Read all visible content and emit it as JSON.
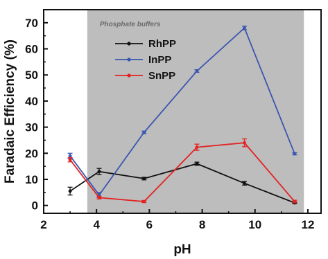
{
  "chart_data": {
    "type": "line",
    "xlabel": "pH",
    "ylabel": "Faradaic Efficiency (%)",
    "xlim": [
      2,
      12.5
    ],
    "ylim": [
      -3,
      75
    ],
    "x_ticks": [
      2,
      4,
      6,
      8,
      10,
      12
    ],
    "y_ticks": [
      0,
      10,
      20,
      30,
      40,
      50,
      60,
      70
    ],
    "grid": false,
    "legend_position": "top-left inside shaded region",
    "shaded_region": {
      "x_start": 3.65,
      "x_end": 11.85,
      "color": "#bdbdbd",
      "label": "Phosphate buffers"
    },
    "series": [
      {
        "name": "RhPP",
        "color": "#111111",
        "x": [
          3.0,
          4.1,
          5.8,
          7.8,
          9.6,
          11.5
        ],
        "y": [
          5.5,
          13.0,
          10.3,
          16.0,
          8.5,
          1.0
        ],
        "err": [
          1.5,
          1.2,
          0.5,
          0.6,
          0.7,
          0.3
        ]
      },
      {
        "name": "InPP",
        "color": "#3a55b0",
        "x": [
          3.0,
          4.1,
          5.8,
          7.8,
          9.6,
          11.5
        ],
        "y": [
          19.0,
          4.0,
          28.0,
          51.5,
          68.0,
          19.8
        ],
        "err": [
          1.0,
          1.0,
          0.5,
          0.5,
          0.7,
          0.4
        ]
      },
      {
        "name": "SnPP",
        "color": "#e32222",
        "x": [
          3.0,
          4.1,
          5.8,
          7.8,
          9.6,
          11.5
        ],
        "y": [
          17.5,
          3.0,
          1.5,
          22.3,
          24.0,
          1.5
        ],
        "err": [
          0.8,
          0.5,
          0.4,
          1.2,
          1.5,
          0.5
        ]
      }
    ]
  }
}
